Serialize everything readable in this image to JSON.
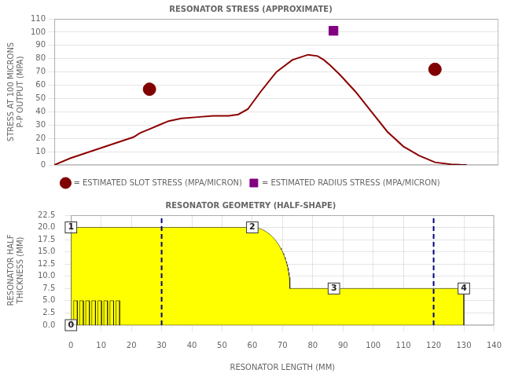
{
  "chart_data": [
    {
      "type": "line",
      "title": "RESONATOR STRESS (APPROXIMATE)",
      "y_label": [
        "STRESS AT 100 MICRONS",
        "P-P OUTPUT (MPA)"
      ],
      "xlim": [
        0,
        140
      ],
      "ylim": [
        0,
        110
      ],
      "yticks": [
        0,
        10,
        20,
        30,
        40,
        50,
        60,
        70,
        80,
        90,
        100,
        110
      ],
      "grid": true,
      "tick_labels": "y",
      "legend": "bottom",
      "series": [
        {
          "type": "line",
          "color": "#8b0000",
          "x": [
            0,
            5,
            10,
            15,
            20,
            25,
            27,
            30,
            33,
            36,
            40,
            45,
            50,
            55,
            58,
            61,
            65,
            70,
            75,
            80,
            83,
            85,
            87,
            90,
            95,
            100,
            105,
            110,
            115,
            120,
            125,
            128,
            130
          ],
          "values": [
            0,
            5,
            9,
            13,
            17,
            21,
            24,
            27,
            30,
            33,
            35,
            36,
            37,
            37,
            38,
            42,
            55,
            70,
            79,
            83,
            82,
            79,
            75,
            68,
            55,
            40,
            25,
            14,
            7,
            2,
            0.5,
            0.1,
            0
          ]
        },
        {
          "type": "scatter",
          "name": "= ESTIMATED SLOT STRESS (MPA/MICRON)",
          "color": "#800000",
          "marker": "circle",
          "x": [
            30,
            120
          ],
          "values": [
            57,
            72
          ]
        },
        {
          "type": "scatter",
          "name": "= ESTIMATED RADIUS STRESS (MPA/MICRON)",
          "color": "#800080",
          "marker": "square",
          "x": [
            88
          ],
          "values": [
            101
          ]
        }
      ]
    },
    {
      "type": "area",
      "title": "RESONATOR GEOMETRY (HALF-SHAPE)",
      "x_label": "RESONATOR LENGTH (MM)",
      "y_label": [
        "RESONATOR HALF",
        "THICKNESS (MM)"
      ],
      "xlim": [
        0,
        140
      ],
      "xticks": [
        0,
        10,
        20,
        30,
        40,
        50,
        60,
        70,
        80,
        90,
        100,
        110,
        120,
        130,
        140
      ],
      "ylim": [
        0,
        22.5
      ],
      "yticks": [
        {
          "value": 0,
          "label": "0.0"
        },
        2.5,
        {
          "value": 5,
          "label": "5.0"
        },
        7.5,
        {
          "value": 10,
          "label": "10.0"
        },
        12.5,
        {
          "value": 15,
          "label": "15.0"
        },
        17.5,
        {
          "value": 20,
          "label": "20.0"
        },
        22.5
      ],
      "grid": true,
      "series": [
        {
          "type": "area",
          "color": "#ffff00",
          "x": [
            0,
            0,
            60,
            60.333,
            60.665,
            60.997,
            61.329,
            61.659,
            61.988,
            62.316,
            62.642,
            62.967,
            63.289,
            63.609,
            63.926,
            64.24,
            64.552,
            64.86,
            65.165,
            65.466,
            65.764,
            66.057,
            66.346,
            66.63,
            66.91,
            67.185,
            67.455,
            67.719,
            67.978,
            68.231,
            68.479,
            68.72,
            68.956,
            69.185,
            69.407,
            69.623,
            69.832,
            70.034,
            70.229,
            70.416,
            70.597,
            70.769,
            70.935,
            71.092,
            71.241,
            71.383,
            71.516,
            71.642,
            71.759,
            71.867,
            71.968,
            72.06,
            72.143,
            72.218,
            72.284,
            72.341,
            72.389,
            72.429,
            72.46,
            72.482,
            72.496,
            72.5,
            130,
            130
          ],
          "values": [
            0,
            20,
            20,
            19.996,
            19.982,
            19.96,
            19.929,
            19.889,
            19.841,
            19.784,
            19.718,
            19.643,
            19.56,
            19.468,
            19.367,
            19.259,
            19.142,
            19.016,
            18.883,
            18.741,
            18.592,
            18.435,
            18.269,
            18.097,
            17.916,
            17.729,
            17.534,
            17.332,
            17.123,
            16.907,
            16.685,
            16.456,
            16.22,
            15.979,
            15.731,
            15.478,
            15.219,
            14.955,
            14.685,
            14.41,
            14.13,
            13.846,
            13.557,
            13.264,
            12.966,
            12.665,
            12.36,
            12.052,
            11.74,
            11.426,
            11.109,
            10.789,
            10.467,
            10.142,
            9.816,
            9.488,
            9.159,
            8.829,
            8.497,
            8.165,
            7.833,
            7.5,
            7.5,
            0
          ]
        },
        {
          "type": "area",
          "color": "#ffff00",
          "x": [
            0.9,
            0.9,
            2.1,
            2.1
          ],
          "values": [
            0,
            5,
            5,
            0
          ]
        },
        {
          "type": "area",
          "color": "#ffff00",
          "x": [
            2.9,
            2.9,
            4.1,
            4.1
          ],
          "values": [
            0,
            5,
            5,
            0
          ]
        },
        {
          "type": "area",
          "color": "#ffff00",
          "x": [
            4.9,
            4.9,
            6.1,
            6.1
          ],
          "values": [
            0,
            5,
            5,
            0
          ]
        },
        {
          "type": "area",
          "color": "#ffff00",
          "x": [
            6.9,
            6.9,
            8.1,
            8.1
          ],
          "values": [
            0,
            5,
            5,
            0
          ]
        },
        {
          "type": "area",
          "color": "#ffff00",
          "x": [
            8.9,
            8.9,
            10.1,
            10.1
          ],
          "values": [
            0,
            5,
            5,
            0
          ]
        },
        {
          "type": "area",
          "color": "#ffff00",
          "x": [
            10.9,
            10.9,
            12.1,
            12.1
          ],
          "values": [
            0,
            5,
            5,
            0
          ]
        },
        {
          "type": "area",
          "color": "#ffff00",
          "x": [
            12.9,
            12.9,
            14.1,
            14.1
          ],
          "values": [
            0,
            5,
            5,
            0
          ]
        },
        {
          "type": "area",
          "color": "#ffff00",
          "x": [
            14.9,
            14.9,
            16.1,
            16.1
          ],
          "values": [
            0,
            5,
            5,
            0
          ]
        },
        {
          "type": "line",
          "line_style": "dashed",
          "color": "#000080",
          "x": [
            30,
            30
          ],
          "values": [
            0,
            22.5
          ]
        },
        {
          "type": "line",
          "line_style": "dashed",
          "color": "#000080",
          "x": [
            120,
            120
          ],
          "values": [
            0,
            22.5
          ]
        }
      ],
      "annotations": [
        {
          "text": "1",
          "x": 0,
          "y": 20.0
        },
        {
          "text": "2",
          "x": 60,
          "y": 20.0
        },
        {
          "text": "3",
          "x": 87,
          "y": 7.5
        },
        {
          "text": "4",
          "x": 130,
          "y": 7.5
        },
        {
          "text": "0",
          "x": 0,
          "y": 0
        }
      ]
    }
  ]
}
